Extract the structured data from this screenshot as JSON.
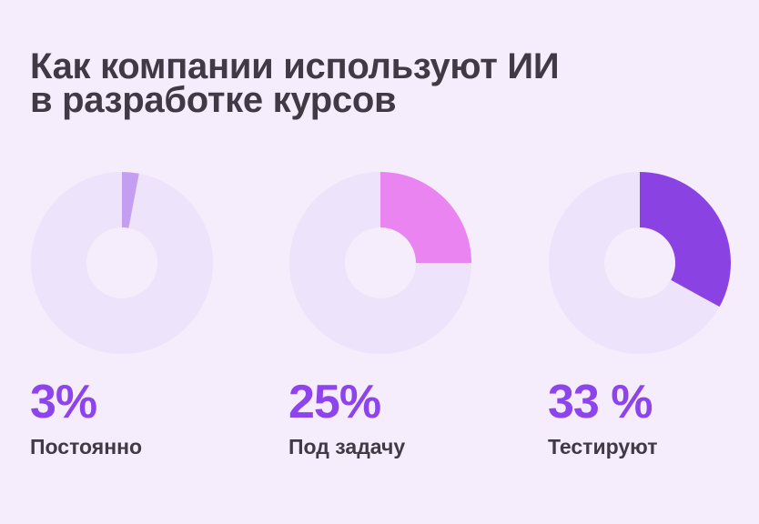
{
  "title": {
    "line1": "Как компании используют ИИ",
    "line2": "в разработке курсов"
  },
  "chart_data": [
    {
      "type": "pie",
      "value": 3,
      "value_label": "3%",
      "label": "Постоянно",
      "color": "#c49ef0",
      "track_color": "#ede3fa"
    },
    {
      "type": "pie",
      "value": 25,
      "value_label": "25%",
      "label": "Под задачу",
      "color": "#e984f0",
      "track_color": "#ede3fa"
    },
    {
      "type": "pie",
      "value": 33,
      "value_label": "33 %",
      "label": "Тестируют",
      "color": "#8a42e3",
      "track_color": "#ede3fa"
    }
  ]
}
